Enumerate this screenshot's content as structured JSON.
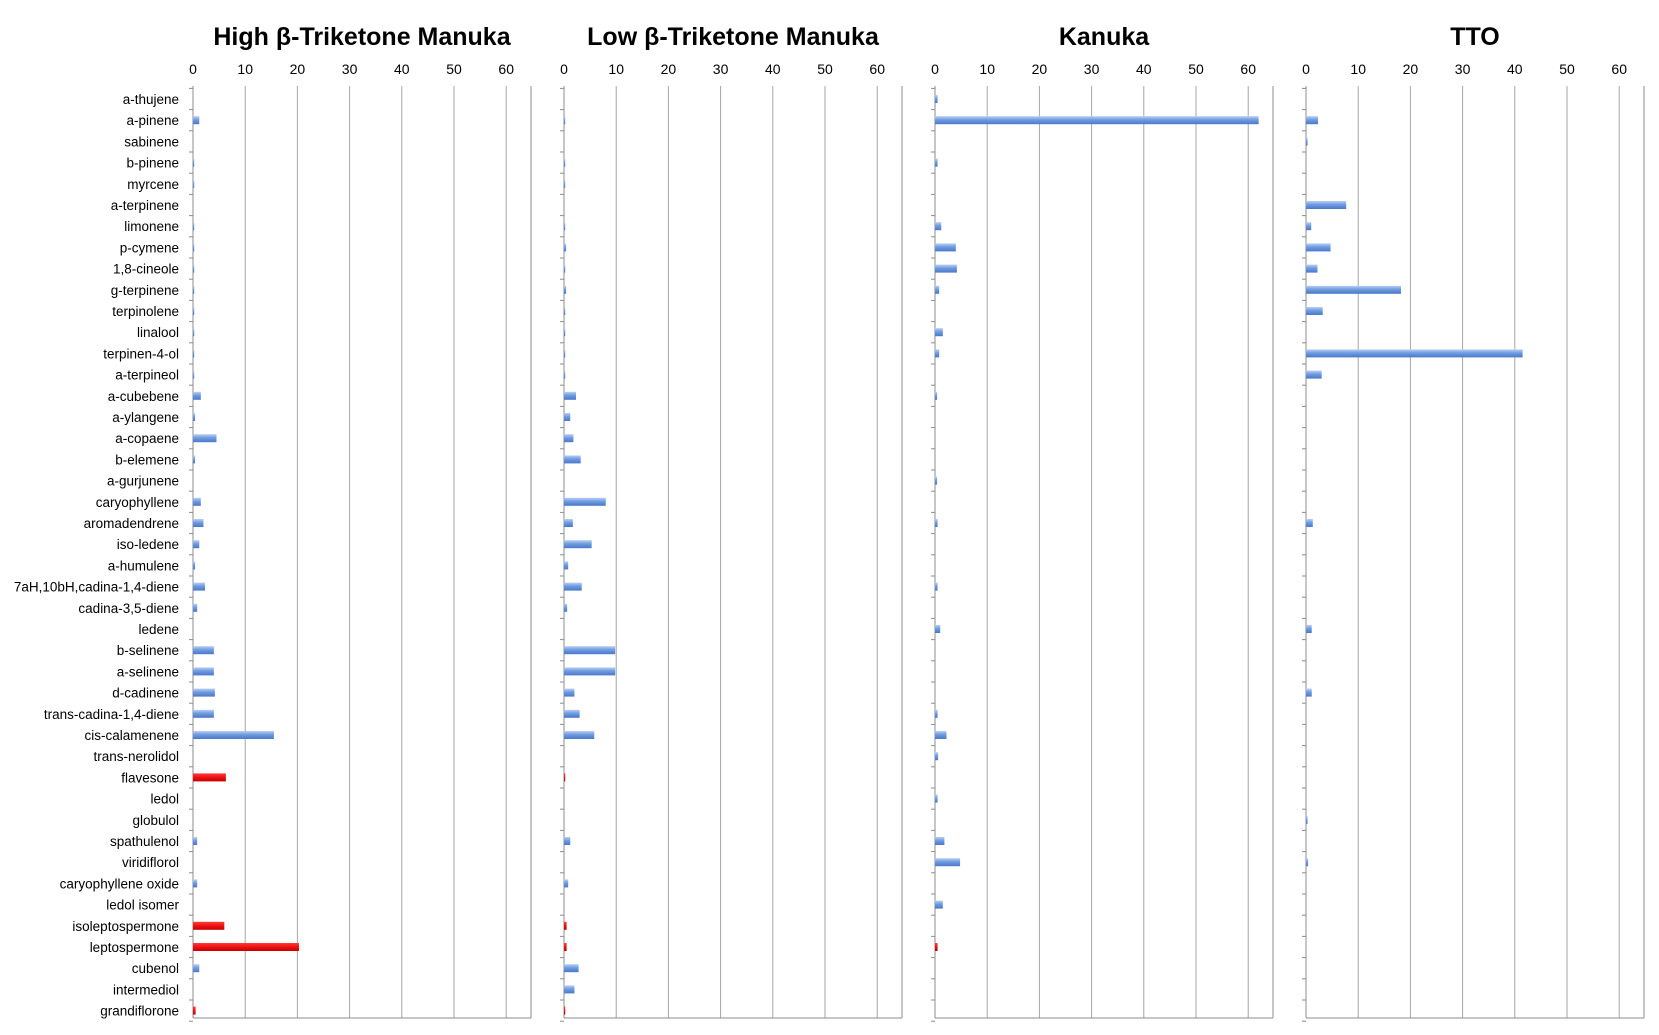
{
  "chart_data": {
    "type": "bar",
    "orientation": "horizontal",
    "grid": true,
    "xlim": [
      0,
      65
    ],
    "xticks": [
      0,
      10,
      20,
      30,
      40,
      50,
      60
    ],
    "categories": [
      "a-thujene",
      "a-pinene",
      "sabinene",
      "b-pinene",
      "myrcene",
      "a-terpinene",
      "limonene",
      "p-cymene",
      "1,8-cineole",
      "g-terpinene",
      "terpinolene",
      "linalool",
      "terpinen-4-ol",
      "a-terpineol",
      "a-cubebene",
      "a-ylangene",
      "a-copaene",
      "b-elemene",
      "a-gurjunene",
      "caryophyllene",
      "aromadendrene",
      "iso-ledene",
      "a-humulene",
      "7aH,10bH,cadina-1,4-diene",
      "cadina-3,5-diene",
      "ledene",
      "b-selinene",
      "a-selinene",
      "d-cadinene",
      "trans-cadina-1,4-diene",
      "cis-calamenene",
      "trans-nerolidol",
      "flavesone",
      "ledol",
      "globulol",
      "spathulenol",
      "viridiflorol",
      "caryophyllene oxide",
      "ledol isomer",
      "isoleptospermone",
      "leptospermone",
      "cubenol",
      "intermediol",
      "grandiflorone"
    ],
    "highlight_categories": [
      "flavesone",
      "isoleptospermone",
      "leptospermone",
      "grandiflorone"
    ],
    "colors": {
      "default": "#6f9be0",
      "highlight": "#ee1111",
      "grid": "#a6a6a6",
      "axis": "#8c8c8c"
    },
    "panels": [
      {
        "title": "High β-Triketone Manuka",
        "values": [
          0,
          1.2,
          0,
          0.2,
          0.2,
          0,
          0.2,
          0.2,
          0.2,
          0.2,
          0.2,
          0.2,
          0.2,
          0.2,
          1.5,
          0.4,
          4.5,
          0.4,
          0,
          1.5,
          2.0,
          1.2,
          0.4,
          2.3,
          0.8,
          0,
          4.0,
          4.0,
          4.2,
          4.0,
          15.5,
          0,
          6.3,
          0,
          0,
          0.8,
          0,
          0.8,
          0,
          6.0,
          20.3,
          1.2,
          0,
          0.5
        ]
      },
      {
        "title": "Low β-Triketone Manuka",
        "values": [
          0,
          0.2,
          0,
          0.2,
          0.2,
          0,
          0.2,
          0.4,
          0.2,
          0.4,
          0.2,
          0.2,
          0.2,
          0.2,
          2.3,
          1.2,
          1.8,
          3.2,
          0,
          8.0,
          1.7,
          5.3,
          0.8,
          3.4,
          0.6,
          0,
          9.8,
          9.8,
          2.0,
          3.0,
          5.8,
          0,
          0.2,
          0,
          0,
          1.2,
          0,
          0.8,
          0,
          0.5,
          0.5,
          2.8,
          2.0,
          0.2
        ]
      },
      {
        "title": "Kanuka",
        "values": [
          0.5,
          62.0,
          0,
          0.5,
          0,
          0,
          1.2,
          4.0,
          4.2,
          0.8,
          0,
          1.5,
          0.8,
          0,
          0.4,
          0,
          0,
          0,
          0.4,
          0,
          0.5,
          0,
          0,
          0.5,
          0,
          1.0,
          0,
          0,
          0,
          0.5,
          2.2,
          0.6,
          0,
          0.5,
          0,
          1.8,
          4.8,
          0,
          1.5,
          0,
          0.5,
          0,
          0,
          0
        ]
      },
      {
        "title": "TTO",
        "values": [
          0,
          2.3,
          0.3,
          0,
          0,
          7.7,
          1.0,
          4.7,
          2.2,
          18.2,
          3.2,
          0,
          41.5,
          3.0,
          0,
          0,
          0,
          0,
          0,
          0,
          1.3,
          0,
          0,
          0,
          0,
          1.1,
          0,
          0,
          1.1,
          0,
          0,
          0,
          0,
          0,
          0.3,
          0,
          0.4,
          0,
          0,
          0,
          0,
          0,
          0,
          0
        ]
      }
    ]
  }
}
